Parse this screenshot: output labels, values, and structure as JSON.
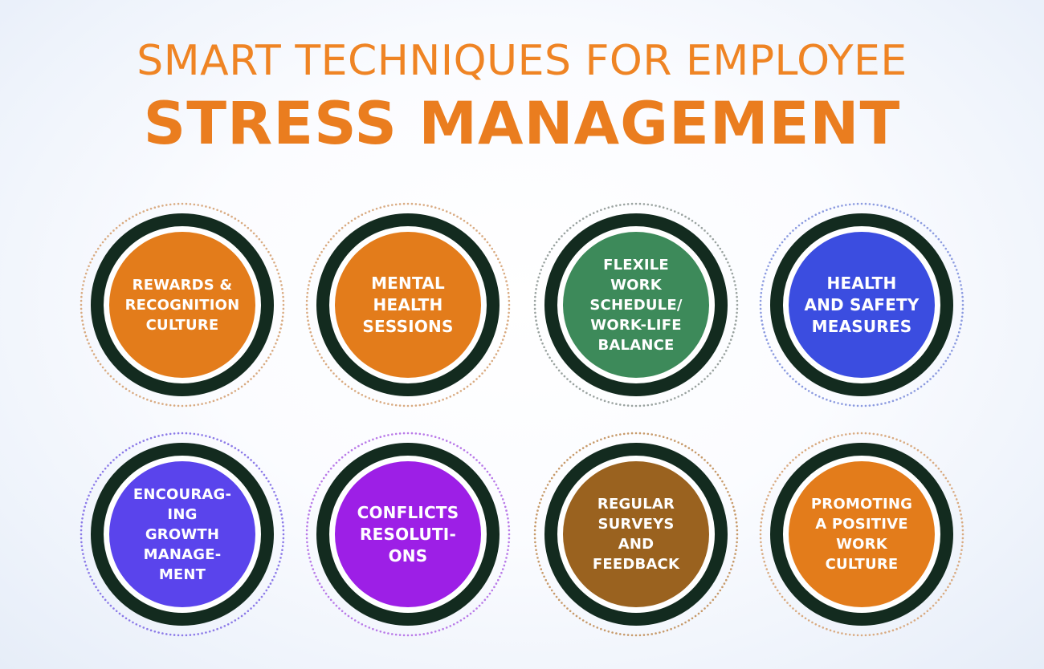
{
  "title": {
    "line1": "SMART TECHNIQUES FOR EMPLOYEE",
    "line2": "STRESS MANAGEMENT"
  },
  "colors": {
    "title": "#ef8424",
    "ring": "#132b1f"
  },
  "badges": [
    {
      "label": "REWARDS &\nRECOGNITION\nCULTURE",
      "color": "#e37c1b",
      "dot_color": "#d9ab82"
    },
    {
      "label": "MENTAL\nHEALTH\nSESSIONS",
      "color": "#e37c1b",
      "dot_color": "#d9ab82"
    },
    {
      "label": "FLEXILE\nWORK\nSCHEDULE/\nWORK-LIFE\nBALANCE",
      "color": "#3d8a5a",
      "dot_color": "#9aa3a0"
    },
    {
      "label": "HEALTH\nAND SAFETY\nMEASURES",
      "color": "#3b4de0",
      "dot_color": "#8c9be0"
    },
    {
      "label": "ENCOURAG-\nING\nGROWTH\nMANAGE-\nMENT",
      "color": "#5a44ec",
      "dot_color": "#8c7ae8"
    },
    {
      "label": "CONFLICTS\nRESOLUTI-\nONS",
      "color": "#9d1fe6",
      "dot_color": "#b97ae8"
    },
    {
      "label": "REGULAR\nSURVEYS\nAND\nFEEDBACK",
      "color": "#9a621f",
      "dot_color": "#c79a6a"
    },
    {
      "label": "PROMOTING\nA POSITIVE\nWORK\nCULTURE",
      "color": "#e37c1b",
      "dot_color": "#d9ab82"
    }
  ]
}
